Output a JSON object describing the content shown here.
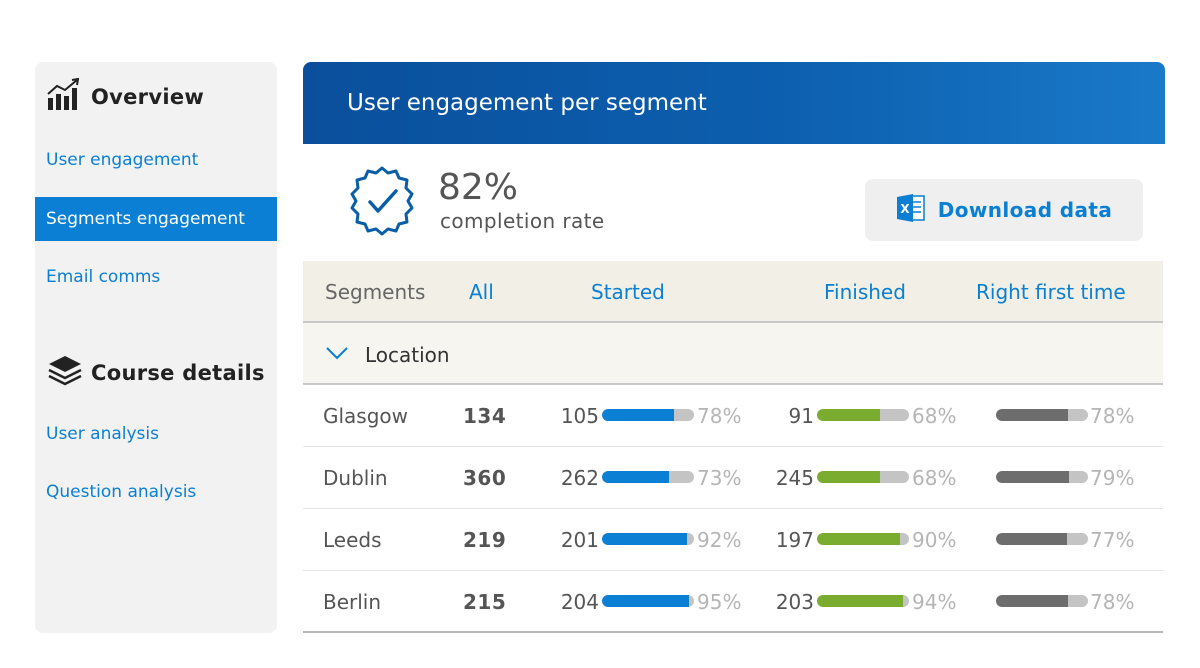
{
  "sidebar": {
    "overview": {
      "title": "Overview",
      "icon": "bar-chart-icon",
      "items": [
        "User engagement",
        "Segments engagement",
        "Email comms"
      ],
      "active_index": 1
    },
    "course_details": {
      "title": "Course details",
      "icon": "stack-icon",
      "items": [
        "User analysis",
        "Question analysis"
      ]
    }
  },
  "banner": {
    "title": "User engagement per segment"
  },
  "summary": {
    "completion_value": "82%",
    "completion_label": "completion rate",
    "icon": "check-badge-icon"
  },
  "download": {
    "label": "Download data",
    "icon": "excel-icon"
  },
  "table": {
    "headers": {
      "segments": "Segments",
      "all": "All",
      "started": "Started",
      "finished": "Finished",
      "rft": "Right first time"
    },
    "group": {
      "label": "Location",
      "icon": "chevron-down-icon"
    },
    "rows": [
      {
        "city": "Glasgow",
        "total": "134",
        "started": "105",
        "started_pct": "78%",
        "finished": "91",
        "finished_pct": "68%",
        "rft_pct": "78%"
      },
      {
        "city": "Dublin",
        "total": "360",
        "started": "262",
        "started_pct": "73%",
        "finished": "245",
        "finished_pct": "68%",
        "rft_pct": "79%"
      },
      {
        "city": "Leeds",
        "total": "219",
        "started": "201",
        "started_pct": "92%",
        "finished": "197",
        "finished_pct": "90%",
        "rft_pct": "77%"
      },
      {
        "city": "Berlin",
        "total": "215",
        "started": "204",
        "started_pct": "95%",
        "finished": "203",
        "finished_pct": "94%",
        "rft_pct": "78%"
      }
    ]
  },
  "colors": {
    "accent": "#0a7fd3",
    "banner": "#0c5fae",
    "started_bar": "#0a7fd3",
    "finished_bar": "#7aac2f",
    "rft_bar": "#6d6d6d",
    "bar_track": "#c4c4c4"
  }
}
